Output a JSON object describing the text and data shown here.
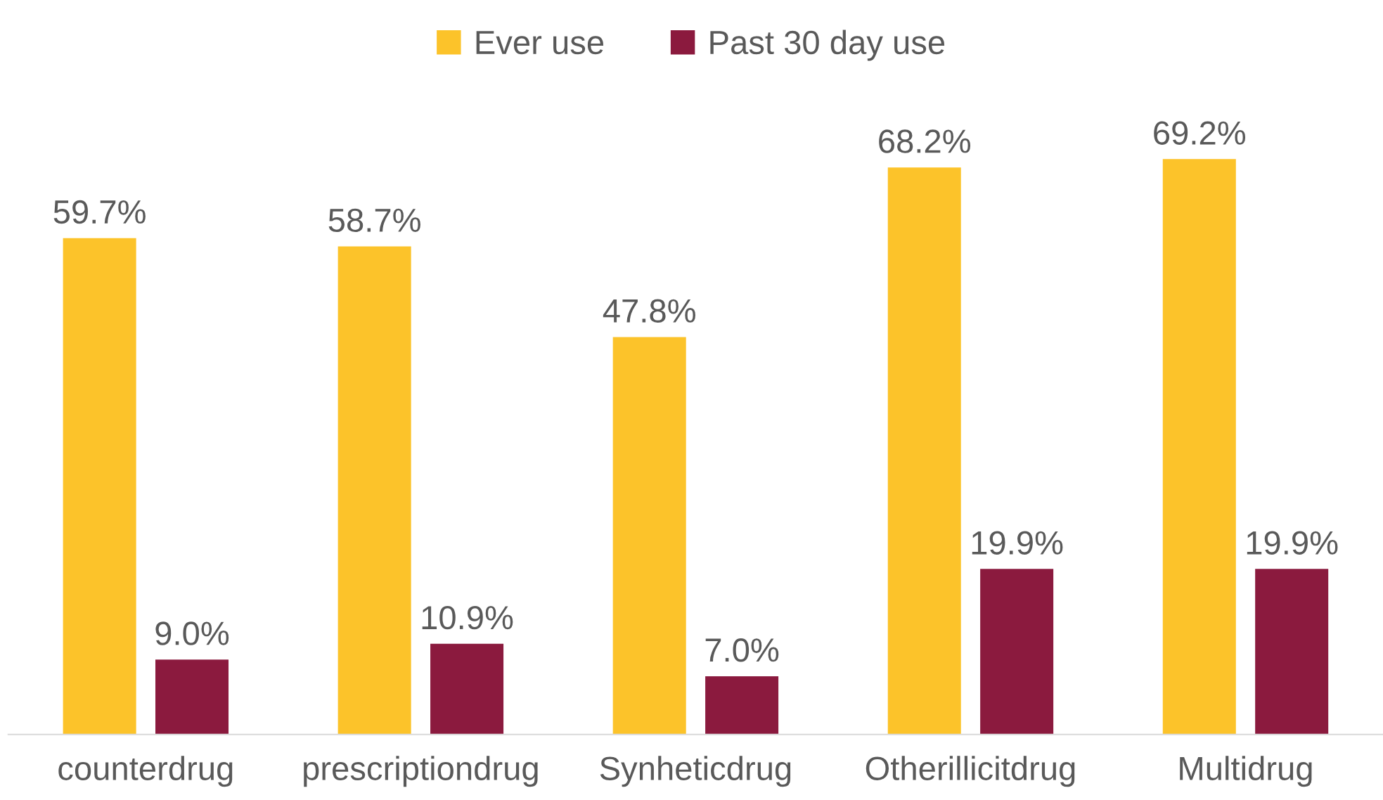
{
  "chart_data": {
    "type": "bar",
    "categories": [
      "counterdrug",
      "prescriptiondrug",
      "Synheticdrug",
      "Otherillicitdrug",
      "Multidrug"
    ],
    "series": [
      {
        "name": "Ever use",
        "color": "#fcc32a",
        "values": [
          59.7,
          58.7,
          47.8,
          68.2,
          69.2
        ],
        "value_labels": [
          "59.7%",
          "58.7%",
          "47.8%",
          "68.2%",
          "69.2%"
        ]
      },
      {
        "name": "Past 30 day use",
        "color": "#8b1a3e",
        "values": [
          9.0,
          10.9,
          7.0,
          19.9,
          19.9
        ],
        "value_labels": [
          "9.0%",
          "10.9%",
          "7.0%",
          "19.9%",
          "19.9%"
        ]
      }
    ],
    "legend": "top",
    "grid": false
  }
}
